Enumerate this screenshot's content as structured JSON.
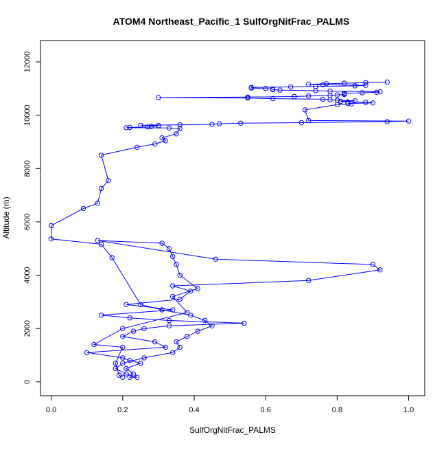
{
  "chart_data": {
    "type": "line",
    "title": "ATOM4 Northeast_Pacific_1 SulfOrgNitFrac_PALMS",
    "xlabel": "SulfOrgNitFrac_PALMS",
    "ylabel": "Altitude (m)",
    "xlim": [
      -0.03,
      1.045
    ],
    "ylim": [
      -520,
      12800
    ],
    "xticks": [
      0.0,
      0.2,
      0.4,
      0.6,
      0.8,
      1.0
    ],
    "xtick_labels": [
      "0.0",
      "0.2",
      "0.4",
      "0.6",
      "0.8",
      "1.0"
    ],
    "yticks": [
      0,
      2000,
      4000,
      6000,
      8000,
      10000,
      12000
    ],
    "ytick_labels": [
      "0",
      "2000",
      "4000",
      "6000",
      "8000",
      "10000",
      "12000"
    ],
    "grid": false,
    "legend": "none",
    "color": "#0000FF",
    "markers": "open-circle",
    "series": [
      {
        "x": [
          0.2,
          0.19,
          0.18,
          0.2,
          0.12,
          0.2,
          0.38,
          0.34,
          0.41,
          0.36,
          0.35,
          0.34,
          0.33,
          0.31,
          0.13,
          0.46,
          0.9,
          0.92,
          0.72,
          0.34,
          0.39,
          0.36,
          0.21,
          0.34,
          0.14,
          0.22,
          0.33,
          0.54,
          0.33,
          0.26,
          0.23,
          0.2,
          0.29,
          0.32,
          0.1,
          0.2,
          0.22,
          0.25,
          0.21,
          0.23,
          0.22,
          0.24,
          0.21,
          0.18,
          0.2,
          0.26,
          0.34,
          0.36,
          0.35,
          0.38,
          0.41,
          0.45,
          0.43,
          0.39,
          0.31,
          0.25,
          0.17,
          0.14,
          0.0,
          0.0,
          0.09,
          0.13,
          0.14,
          0.16,
          0.14,
          0.24,
          0.29,
          0.32,
          0.31,
          0.35,
          0.36,
          0.33,
          0.21,
          0.22,
          0.27,
          0.28,
          0.3,
          0.3,
          0.25,
          0.36,
          0.45,
          0.47,
          0.53,
          0.7,
          0.94,
          1.0,
          0.72,
          0.71,
          0.8,
          0.84,
          0.83,
          0.9,
          0.88,
          0.83,
          0.81,
          0.85,
          0.8,
          0.78,
          0.76,
          0.62,
          0.55,
          0.3,
          0.55,
          0.68,
          0.72,
          0.78,
          0.8,
          0.82,
          0.82,
          0.82,
          0.87,
          0.91,
          0.92,
          0.78,
          0.74,
          0.64,
          0.62,
          0.62,
          0.6,
          0.56,
          0.56,
          0.67,
          0.74,
          0.85,
          0.88,
          0.76,
          0.72,
          0.77,
          0.82,
          0.88,
          0.94
        ]
      },
      {
        "y": [
          170,
          250,
          700,
          1300,
          1400,
          2000,
          2600,
          3200,
          3500,
          4000,
          4400,
          4700,
          5000,
          5200,
          5300,
          4600,
          4400,
          4200,
          3800,
          3600,
          3400,
          3100,
          2900,
          2700,
          2500,
          2400,
          2300,
          2200,
          2100,
          2000,
          1900,
          1700,
          1500,
          1300,
          1100,
          900,
          800,
          700,
          500,
          300,
          170,
          170,
          300,
          500,
          700,
          900,
          1100,
          1300,
          1500,
          1700,
          1900,
          2100,
          2300,
          2500,
          2700,
          2900,
          4660,
          5160,
          5360,
          5860,
          6500,
          6700,
          7250,
          7550,
          8500,
          8800,
          8920,
          9040,
          9150,
          9300,
          9500,
          9520,
          9530,
          9540,
          9560,
          9580,
          9600,
          9610,
          9620,
          9640,
          9660,
          9680,
          9700,
          9720,
          9760,
          9780,
          9800,
          10200,
          10400,
          10420,
          10440,
          10460,
          10480,
          10500,
          10520,
          10540,
          10560,
          10580,
          10600,
          10620,
          10640,
          10660,
          10680,
          10700,
          10720,
          10740,
          10760,
          10780,
          10800,
          10820,
          10840,
          10860,
          10880,
          10900,
          10920,
          10940,
          10960,
          10980,
          11000,
          11020,
          11040,
          11060,
          11080,
          11100,
          11120,
          11140,
          11160,
          11180,
          11200,
          11220,
          11240
        ]
      }
    ]
  }
}
